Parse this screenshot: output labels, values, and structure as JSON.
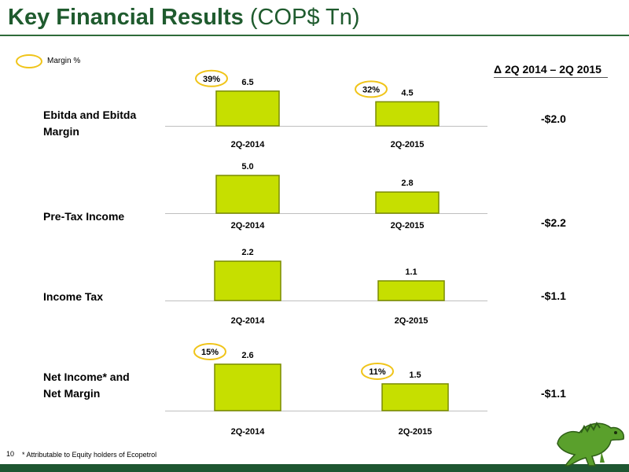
{
  "header": {
    "title_bold": "Key Financial Results",
    "title_unit": "(COP$ Tn)"
  },
  "legend": {
    "label": "Margin %"
  },
  "delta_header": "Δ 2Q 2014 – 2Q 2015",
  "footer": {
    "page_number": "10",
    "footnote": "* Attributable to Equity holders of Ecopetrol"
  },
  "colors": {
    "bar": "#c6df00",
    "bar_edge": "#7a8c00",
    "margin_oval": "#f0c419",
    "title": "#1f5b2e",
    "footer": "#1e5631"
  },
  "logo": {
    "icon": "iguana-icon"
  },
  "chart_data": [
    {
      "type": "bar",
      "label": "Ebitda and Ebitda Margin",
      "categories": [
        "2Q-2014",
        "2Q-2015"
      ],
      "values": [
        6.5,
        4.5
      ],
      "value_labels": [
        "6.5",
        "4.5"
      ],
      "margins": [
        "39%",
        "32%"
      ],
      "delta": "-$2.0"
    },
    {
      "type": "bar",
      "label": "Pre-Tax Income",
      "categories": [
        "2Q-2014",
        "2Q-2015"
      ],
      "values": [
        5.0,
        2.8
      ],
      "value_labels": [
        "5.0",
        "2.8"
      ],
      "margins": [],
      "delta": "-$2.2"
    },
    {
      "type": "bar",
      "label": "Income Tax",
      "categories": [
        "2Q-2014",
        "2Q-2015"
      ],
      "values": [
        2.2,
        1.1
      ],
      "value_labels": [
        "2.2",
        "1.1"
      ],
      "margins": [],
      "delta": "-$1.1"
    },
    {
      "type": "bar",
      "label": "Net Income* and Net Margin",
      "categories": [
        "2Q-2014",
        "2Q-2015"
      ],
      "values": [
        2.6,
        1.5
      ],
      "value_labels": [
        "2.6",
        "1.5"
      ],
      "margins": [
        "15%",
        "11%"
      ],
      "delta": "-$1.1"
    }
  ]
}
